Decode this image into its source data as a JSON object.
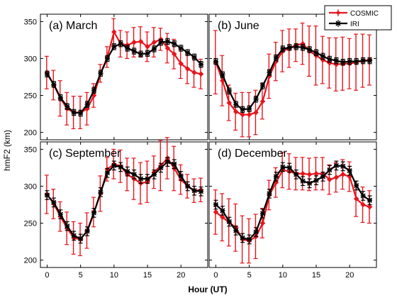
{
  "chart_data": {
    "type": "line",
    "xlabel": "Hour (UT)",
    "ylabel": "hmF2 (km)",
    "xlim": [
      -1,
      24
    ],
    "ylim": [
      190,
      360
    ],
    "xticks": [
      0,
      5,
      10,
      15,
      20
    ],
    "yticks": [
      200,
      250,
      300,
      350
    ],
    "legend": {
      "placement": "top-right",
      "entries": [
        "COSMIC",
        "IRI"
      ]
    },
    "colors": {
      "COSMIC": "#e8141b",
      "IRI": "#000000"
    },
    "x": [
      0,
      1,
      2,
      3,
      4,
      5,
      6,
      7,
      8,
      9,
      10,
      11,
      12,
      13,
      14,
      15,
      16,
      17,
      18,
      19,
      20,
      21,
      22,
      23
    ],
    "panels": [
      {
        "title": "(a) March",
        "series": [
          {
            "name": "COSMIC",
            "values": [
              281,
              264,
              246,
              232,
              227,
              227,
              232,
              250,
              280,
              302,
              336,
              320,
              318,
              322,
              323,
              316,
              322,
              326,
              314,
              306,
              293,
              286,
              281,
              279
            ],
            "errors": [
              22,
              20,
              24,
              22,
              22,
              22,
              22,
              16,
              12,
              14,
              18,
              18,
              18,
              20,
              20,
              20,
              20,
              15,
              20,
              20,
              20,
              20,
              20,
              20
            ]
          },
          {
            "name": "IRI",
            "values": [
              279,
              265,
              247,
              235,
              227,
              226,
              238,
              257,
              280,
              300,
              316,
              320,
              314,
              310,
              306,
              307,
              313,
              322,
              323,
              320,
              314,
              308,
              302,
              292
            ],
            "errors": [
              4,
              4,
              4,
              4,
              4,
              4,
              4,
              4,
              4,
              4,
              4,
              4,
              4,
              4,
              4,
              4,
              4,
              4,
              4,
              4,
              4,
              4,
              4,
              4
            ]
          }
        ]
      },
      {
        "title": "(b) June",
        "series": [
          {
            "name": "COSMIC",
            "values": [
              295,
              270,
              240,
              228,
              224,
              224,
              227,
              242,
              276,
              296,
              310,
              314,
              318,
              320,
              310,
              304,
              298,
              294,
              292,
              293,
              293,
              295,
              297,
              298
            ],
            "errors": [
              43,
              34,
              24,
              25,
              30,
              30,
              30,
              24,
              30,
              26,
              28,
              26,
              22,
              28,
              34,
              40,
              32,
              34,
              36,
              36,
              34,
              38,
              36,
              34
            ]
          },
          {
            "name": "IRI",
            "values": [
              296,
              278,
              256,
              238,
              231,
              232,
              245,
              263,
              281,
              301,
              313,
              315,
              316,
              315,
              312,
              308,
              303,
              299,
              297,
              295,
              296,
              296,
              297,
              297
            ],
            "errors": [
              4,
              4,
              4,
              4,
              4,
              4,
              4,
              4,
              4,
              4,
              4,
              4,
              4,
              4,
              4,
              4,
              4,
              4,
              4,
              4,
              4,
              4,
              4,
              4
            ]
          }
        ]
      },
      {
        "title": "(c) September",
        "series": [
          {
            "name": "COSMIC",
            "values": [
              289,
              276,
              259,
              243,
              230,
              228,
              240,
              265,
              290,
              323,
              330,
              327,
              316,
              310,
              304,
              306,
              319,
              328,
              338,
              324,
              309,
              300,
              294,
              295
            ],
            "errors": [
              26,
              20,
              20,
              22,
              22,
              22,
              24,
              20,
              24,
              16,
              20,
              22,
              22,
              28,
              28,
              28,
              22,
              34,
              28,
              30,
              20,
              16,
              16,
              16
            ]
          },
          {
            "name": "IRI",
            "values": [
              288,
              278,
              262,
              246,
              233,
              229,
              239,
              264,
              292,
              318,
              328,
              326,
              320,
              316,
              310,
              310,
              316,
              325,
              333,
              330,
              314,
              300,
              294,
              293
            ],
            "errors": [
              6,
              6,
              6,
              6,
              6,
              6,
              6,
              6,
              6,
              6,
              6,
              6,
              6,
              6,
              6,
              6,
              6,
              6,
              6,
              6,
              6,
              6,
              6,
              6
            ]
          }
        ]
      },
      {
        "title": "(d) December",
        "series": [
          {
            "name": "COSMIC",
            "values": [
              265,
              258,
              251,
              244,
              228,
              226,
              232,
              250,
              288,
              305,
              322,
              320,
              317,
              317,
              316,
              317,
              317,
              309,
              312,
              316,
              313,
              283,
              275,
              272
            ],
            "errors": [
              30,
              32,
              32,
              32,
              32,
              30,
              30,
              20,
              20,
              20,
              24,
              24,
              22,
              22,
              22,
              22,
              22,
              20,
              20,
              20,
              20,
              24,
              24,
              22
            ]
          },
          {
            "name": "IRI",
            "values": [
              275,
              267,
              252,
              240,
              230,
              228,
              238,
              263,
              290,
              313,
              326,
              325,
              316,
              307,
              304,
              308,
              313,
              322,
              328,
              327,
              321,
              301,
              287,
              281
            ],
            "errors": [
              6,
              6,
              6,
              6,
              6,
              6,
              6,
              6,
              6,
              6,
              6,
              6,
              6,
              6,
              6,
              6,
              6,
              6,
              6,
              6,
              6,
              6,
              6,
              6
            ]
          }
        ]
      }
    ]
  }
}
